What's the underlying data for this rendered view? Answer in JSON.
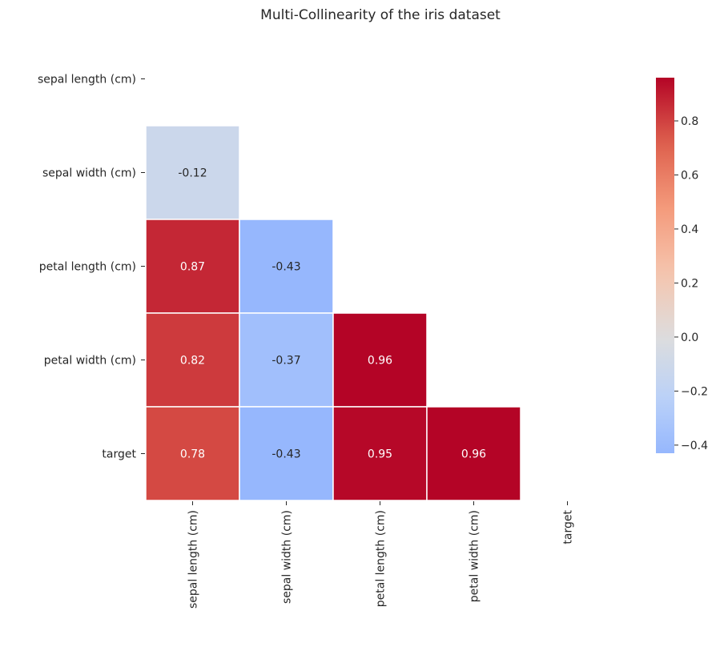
{
  "chart_data": {
    "type": "heatmap",
    "title": "Multi-Collinearity of the iris dataset",
    "variables": [
      "sepal length (cm)",
      "sepal width (cm)",
      "petal length (cm)",
      "petal width (cm)",
      "target"
    ],
    "mask": "upper-triangle-including-diagonal",
    "cells": [
      {
        "row": 1,
        "col": 0,
        "value": -0.12,
        "label": "-0.12"
      },
      {
        "row": 2,
        "col": 0,
        "value": 0.87,
        "label": "0.87"
      },
      {
        "row": 2,
        "col": 1,
        "value": -0.43,
        "label": "-0.43"
      },
      {
        "row": 3,
        "col": 0,
        "value": 0.82,
        "label": "0.82"
      },
      {
        "row": 3,
        "col": 1,
        "value": -0.37,
        "label": "-0.37"
      },
      {
        "row": 3,
        "col": 2,
        "value": 0.96,
        "label": "0.96"
      },
      {
        "row": 4,
        "col": 0,
        "value": 0.78,
        "label": "0.78"
      },
      {
        "row": 4,
        "col": 1,
        "value": -0.43,
        "label": "-0.43"
      },
      {
        "row": 4,
        "col": 2,
        "value": 0.95,
        "label": "0.95"
      },
      {
        "row": 4,
        "col": 3,
        "value": 0.96,
        "label": "0.96"
      }
    ],
    "colormap": "coolwarm",
    "center": 0.0,
    "vmin": -0.43,
    "vmax": 0.96,
    "colorbar": {
      "ticks": [
        -0.4,
        -0.2,
        0.0,
        0.2,
        0.4,
        0.6,
        0.8
      ],
      "tick_labels": [
        "−0.4",
        "−0.2",
        "0.0",
        "0.2",
        "0.4",
        "0.6",
        "0.8"
      ]
    }
  }
}
